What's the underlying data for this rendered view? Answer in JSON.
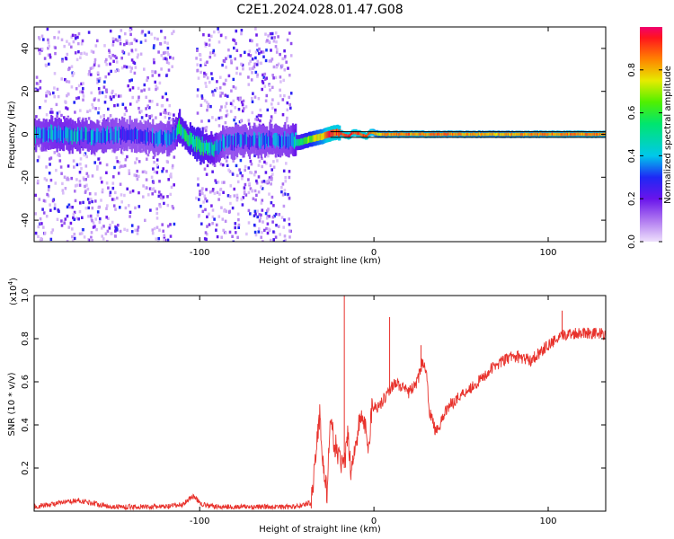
{
  "figure_title": "C2E1.2024.028.01.47.G08",
  "chart_data": [
    {
      "type": "heatmap",
      "xlabel": "Height of straight line (km)",
      "ylabel": "Frequency (Hz)",
      "xlim": [
        -195,
        133
      ],
      "ylim": [
        -50,
        50
      ],
      "xticks": [
        -100,
        0,
        100
      ],
      "yticks": [
        -40,
        -20,
        0,
        20,
        40
      ],
      "xtick_labels": [
        "-100",
        "0",
        "100"
      ],
      "ytick_labels": [
        "-40",
        "-20",
        "0",
        "20",
        "40"
      ],
      "grid": false,
      "colorbar": {
        "label": "Normalized spectral amplitude",
        "range": [
          0,
          1
        ],
        "ticks": [
          0.0,
          0.2,
          0.4,
          0.6,
          0.8
        ],
        "tick_labels": [
          "0.0",
          "0.2",
          "0.4",
          "0.6",
          "0.8"
        ],
        "colormap": "rainbow (lavender, purple, blue, cyan, green, yellow, orange, red)"
      },
      "frequency_trace": {
        "x": [
          -195,
          -180,
          -160,
          -140,
          -125,
          -115,
          -112,
          -108,
          -103,
          -98,
          -93,
          -88,
          -85,
          -48,
          -44,
          -40,
          -35,
          -30,
          -26,
          -22,
          -18,
          -15,
          -12,
          -8,
          -5,
          -2,
          2,
          5,
          10,
          40,
          70,
          100,
          133
        ],
        "y": [
          0,
          0,
          -1,
          0,
          -2,
          -1,
          3,
          -2,
          -4,
          -6,
          -7,
          -5,
          -3,
          -3,
          -4,
          -3,
          -2,
          -1,
          0,
          1,
          0,
          -1,
          1,
          0,
          -1,
          1,
          0,
          0,
          0,
          0,
          0,
          0,
          0
        ],
        "peak_amplitude": [
          0.35,
          0.4,
          0.35,
          0.3,
          0.3,
          0.35,
          0.5,
          0.5,
          0.55,
          0.5,
          0.45,
          0.35,
          0.3,
          0.35,
          0.5,
          0.6,
          0.7,
          0.8,
          0.95,
          0.9,
          0.9,
          0.95,
          0.9,
          0.9,
          0.95,
          0.9,
          0.75,
          0.8,
          0.85,
          0.85,
          0.8,
          0.85,
          0.85
        ]
      },
      "noise_regions": [
        {
          "x": [
            -195,
            -115
          ],
          "density": 0.8
        },
        {
          "x": [
            -103,
            -48
          ],
          "density": 0.9
        }
      ]
    },
    {
      "type": "line",
      "xlabel": "Height of straight line (km)",
      "ylabel": "SNR (10 * v/v)",
      "y_multiplier_label": "(x10",
      "y_multiplier_exponent": "4",
      "y_multiplier_close": ")",
      "xlim": [
        -195,
        133
      ],
      "ylim": [
        0,
        1.0
      ],
      "xticks": [
        -100,
        0,
        100
      ],
      "yticks": [
        0.2,
        0.4,
        0.6,
        0.8,
        1.0
      ],
      "xtick_labels": [
        "-100",
        "0",
        "100"
      ],
      "ytick_labels": [
        "0.2",
        "0.4",
        "0.6",
        "0.8",
        "1.0"
      ],
      "grid": false,
      "color": "#e8322c",
      "series": [
        {
          "x": [
            -195,
            -170,
            -150,
            -130,
            -120,
            -110,
            -104,
            -98,
            -90,
            -75,
            -60,
            -45,
            -36,
            -33,
            -31,
            -29,
            -27,
            -25,
            -22,
            -20,
            -17,
            -15,
            -13,
            -11,
            -9,
            -7,
            -5,
            -3,
            -1,
            1,
            4,
            8,
            12,
            15,
            20,
            25,
            28,
            30,
            32,
            35,
            38,
            42,
            50,
            60,
            70,
            80,
            90,
            100,
            110,
            120,
            133
          ],
          "y": [
            0.02,
            0.05,
            0.02,
            0.02,
            0.02,
            0.03,
            0.07,
            0.03,
            0.02,
            0.02,
            0.02,
            0.02,
            0.04,
            0.3,
            0.45,
            0.2,
            0.08,
            0.4,
            0.3,
            0.25,
            0.2,
            0.35,
            0.18,
            0.3,
            0.38,
            0.45,
            0.38,
            0.3,
            0.5,
            0.48,
            0.5,
            0.55,
            0.6,
            0.58,
            0.55,
            0.6,
            0.7,
            0.64,
            0.46,
            0.38,
            0.4,
            0.48,
            0.54,
            0.6,
            0.68,
            0.72,
            0.7,
            0.77,
            0.82,
            0.83,
            0.82
          ],
          "spikes": [
            {
              "x": -17,
              "y": 1.0
            },
            {
              "x": 9,
              "y": 0.9
            },
            {
              "x": 27,
              "y": 0.77
            },
            {
              "x": 108,
              "y": 0.93
            }
          ]
        }
      ]
    }
  ]
}
